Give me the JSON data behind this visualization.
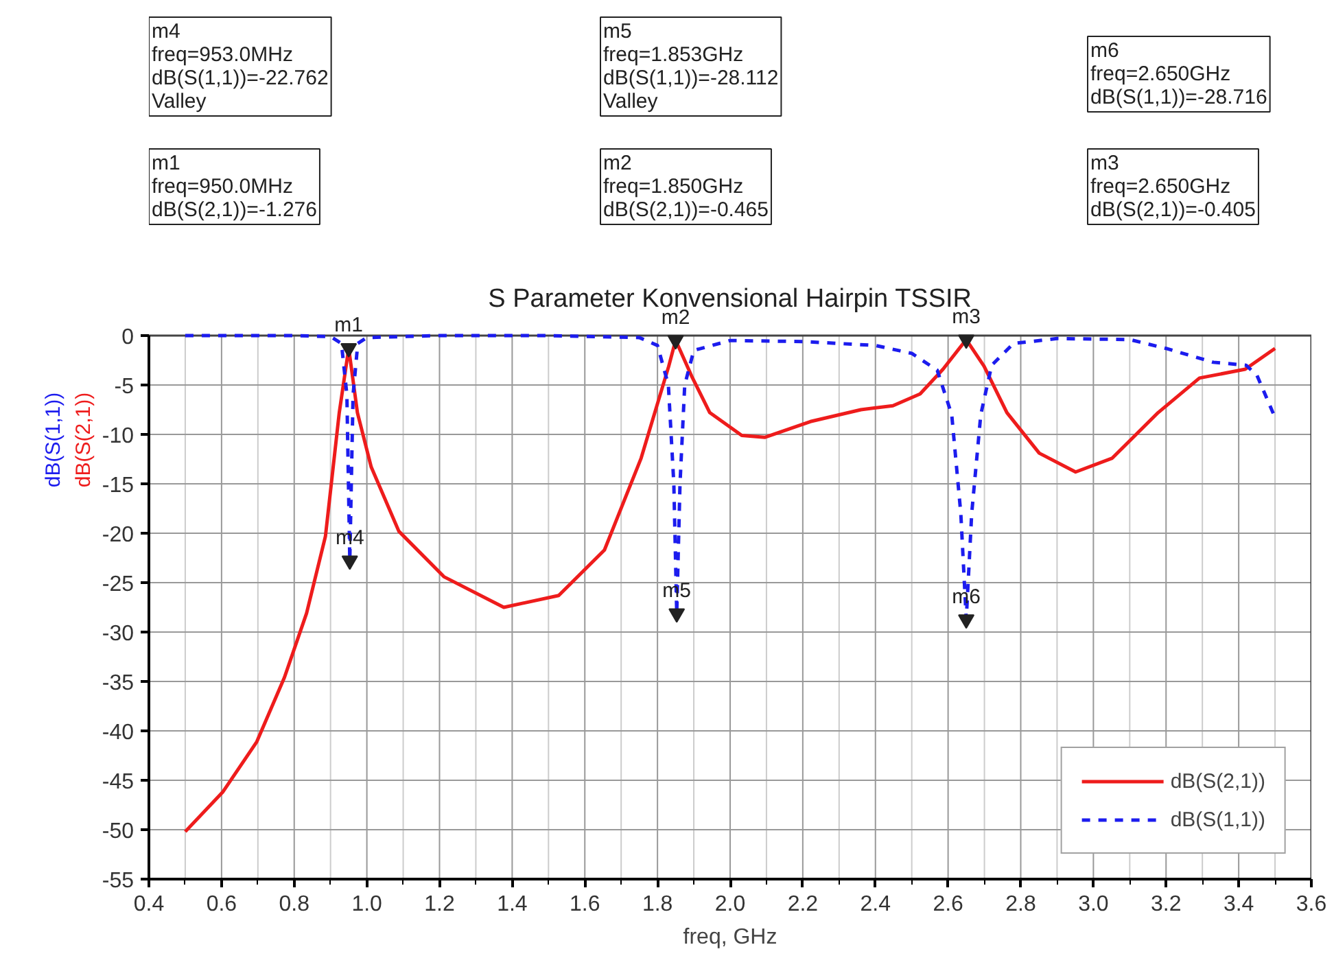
{
  "chart_data": {
    "type": "line",
    "title": "S Parameter Konvensional Hairpin TSSIR",
    "xlabel": "freq, GHz",
    "ylabel": "dB(S(2,1))\ndB(S(1,1))",
    "series": [
      {
        "name": "dB(S(2,1))",
        "color": "#ee1c1c",
        "line_style": "solid",
        "x": [
          0.5,
          0.603,
          0.697,
          0.773,
          0.834,
          0.886,
          0.924,
          0.95,
          0.974,
          1.012,
          1.088,
          1.212,
          1.377,
          1.528,
          1.654,
          1.755,
          1.831,
          1.85,
          1.894,
          1.944,
          2.032,
          2.095,
          2.221,
          2.36,
          2.448,
          2.523,
          2.586,
          2.65,
          2.699,
          2.762,
          2.851,
          2.951,
          3.052,
          3.178,
          3.292,
          3.418,
          3.5
        ],
        "values": [
          -50.2,
          -46.2,
          -41.1,
          -34.6,
          -28.1,
          -20.3,
          -7.8,
          -1.276,
          -7.8,
          -13.3,
          -19.8,
          -24.4,
          -27.5,
          -26.3,
          -21.7,
          -12.4,
          -3.1,
          -0.465,
          -4.1,
          -7.8,
          -10.1,
          -10.3,
          -8.7,
          -7.5,
          -7.1,
          -5.9,
          -3.4,
          -0.405,
          -3.1,
          -7.8,
          -11.9,
          -13.8,
          -12.4,
          -7.8,
          -4.3,
          -3.4,
          -1.3
        ]
      },
      {
        "name": "dB(S(1,1))",
        "color": "#1c1cee",
        "line_style": "dashed",
        "x": [
          0.5,
          0.8,
          0.9,
          0.93,
          0.945,
          0.953,
          0.962,
          0.975,
          1.0,
          1.2,
          1.5,
          1.75,
          1.8,
          1.83,
          1.845,
          1.853,
          1.862,
          1.875,
          1.9,
          2.0,
          2.2,
          2.4,
          2.5,
          2.57,
          2.61,
          2.635,
          2.65,
          2.665,
          2.69,
          2.72,
          2.78,
          2.9,
          3.1,
          3.2,
          3.33,
          3.42,
          3.45,
          3.5
        ],
        "values": [
          0,
          0,
          -0.1,
          -0.8,
          -6,
          -22.762,
          -6,
          -0.8,
          -0.2,
          0,
          0,
          -0.2,
          -1,
          -5,
          -15,
          -28.112,
          -15,
          -5,
          -1.5,
          -0.5,
          -0.6,
          -1,
          -1.8,
          -3.5,
          -8,
          -18,
          -28.716,
          -18,
          -8,
          -3,
          -0.8,
          -0.3,
          -0.4,
          -1.3,
          -2.7,
          -3,
          -4,
          -8.3
        ]
      }
    ],
    "xlim": [
      0.4,
      3.6
    ],
    "ylim": [
      -55,
      0
    ],
    "xticks": [
      0.4,
      0.6,
      0.8,
      {
        "value": 1.0,
        "label": "1.0"
      },
      1.2,
      1.4,
      1.6,
      1.8,
      {
        "value": 2.0,
        "label": "2.0"
      },
      2.2,
      2.4,
      2.6,
      2.8,
      {
        "value": 3.0,
        "label": "3.0"
      },
      3.2,
      3.4,
      3.6
    ],
    "yticks": [
      0,
      -5,
      -10,
      -15,
      -20,
      -25,
      -30,
      -35,
      -40,
      -45,
      -50,
      -55
    ],
    "grid": true,
    "legend": "bottom right",
    "marker": "none",
    "annotations": [
      {
        "text": "m1",
        "x": 0.95,
        "y": -1.276
      },
      {
        "text": "m2",
        "x": 1.85,
        "y": -0.465
      },
      {
        "text": "m3",
        "x": 2.65,
        "y": -0.405
      },
      {
        "text": "m4",
        "x": 0.953,
        "y": -22.762
      },
      {
        "text": "m5",
        "x": 1.853,
        "y": -28.112
      },
      {
        "text": "m6",
        "x": 2.65,
        "y": -28.716
      },
      "m4\nfreq=953.0MHz\ndB(S(1,1))=-22.762\nValley",
      "m5\nfreq=1.853GHz\ndB(S(1,1))=-28.112\nValley",
      "m6\nfreq=2.650GHz\ndB(S(1,1))=-28.716",
      "m1\nfreq=950.0MHz\ndB(S(2,1))=-1.276",
      "m2\nfreq=1.850GHz\ndB(S(2,1))=-0.465",
      "m3\nfreq=2.650GHz\ndB(S(2,1))=-0.405"
    ]
  }
}
